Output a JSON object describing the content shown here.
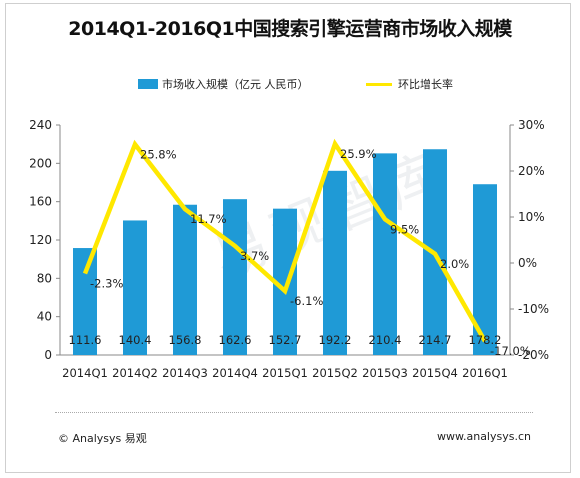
{
  "title": "2014Q1-2016Q1中国搜索引擎运营商市场收入规模",
  "legend": {
    "bar_label": "市场收入规模（亿元 人民币）",
    "line_label": "环比增长率"
  },
  "watermark": "易观智库",
  "footer": {
    "copyright": "© Analysys 易观",
    "website": "www.analysys.cn"
  },
  "colors": {
    "bar": "#1f9ad6",
    "line": "#ffe800"
  },
  "chart_data": {
    "type": "bar",
    "categories": [
      "2014Q1",
      "2014Q2",
      "2014Q3",
      "2014Q4",
      "2015Q1",
      "2015Q2",
      "2015Q3",
      "2015Q4",
      "2016Q1"
    ],
    "series": [
      {
        "name": "市场收入规模（亿元 人民币）",
        "type": "bar",
        "axis": "left",
        "values": [
          111.6,
          140.4,
          156.8,
          162.6,
          152.7,
          192.2,
          210.4,
          214.7,
          178.2
        ],
        "labels": [
          "111.6",
          "140.4",
          "156.8",
          "162.6",
          "152.7",
          "192.2",
          "210.4",
          "214.7",
          "178.2"
        ]
      },
      {
        "name": "环比增长率",
        "type": "line",
        "axis": "right",
        "values": [
          -2.3,
          25.8,
          11.7,
          3.7,
          -6.1,
          25.9,
          9.5,
          2.0,
          -17.0
        ],
        "labels": [
          "-2.3%",
          "25.8%",
          "11.7%",
          "3.7%",
          "-6.1%",
          "25.9%",
          "9.5%",
          "2.0%",
          "-17.0%"
        ]
      }
    ],
    "y_left": {
      "ylim": [
        0,
        240
      ],
      "ticks": [
        "0",
        "40",
        "80",
        "120",
        "160",
        "200",
        "240"
      ]
    },
    "y_right": {
      "ylim": [
        -20,
        30
      ],
      "ticks": [
        "-20%",
        "-10%",
        "0%",
        "10%",
        "20%",
        "30%"
      ]
    },
    "legend_position": "top",
    "grid": false
  }
}
